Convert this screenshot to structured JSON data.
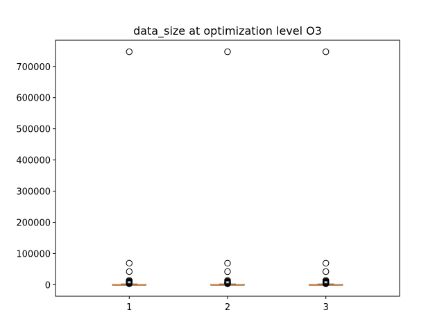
{
  "chart_data": {
    "type": "box",
    "title": "data_size at optimization level O3",
    "xlabel": "",
    "ylabel": "",
    "categories": [
      "1",
      "2",
      "3"
    ],
    "ylim": [
      -37000,
      784000
    ],
    "yticks": [
      0,
      100000,
      200000,
      300000,
      400000,
      500000,
      600000,
      700000
    ],
    "ytick_labels": [
      "0",
      "100000",
      "200000",
      "300000",
      "400000",
      "500000",
      "600000",
      "700000"
    ],
    "grid": false,
    "box_color": "#000000",
    "median_color": "#ff7f0e",
    "boxes": [
      {
        "category": "1",
        "whisker_low": 0,
        "q1": 100,
        "median": 400,
        "q3": 1000,
        "whisker_high": 2200,
        "outliers": [
          747000,
          69000,
          42000,
          14000,
          11000,
          9000,
          7000,
          6000,
          5000,
          4000,
          3500,
          3000
        ]
      },
      {
        "category": "2",
        "whisker_low": 0,
        "q1": 100,
        "median": 400,
        "q3": 1000,
        "whisker_high": 2200,
        "outliers": [
          747000,
          69000,
          42000,
          14000,
          11000,
          9000,
          7000,
          6000,
          5000,
          4000,
          3500,
          3000
        ]
      },
      {
        "category": "3",
        "whisker_low": 0,
        "q1": 100,
        "median": 400,
        "q3": 1000,
        "whisker_high": 2200,
        "outliers": [
          747000,
          69000,
          42000,
          14000,
          11000,
          9000,
          7000,
          6000,
          5000,
          4000,
          3500,
          3000
        ]
      }
    ]
  }
}
